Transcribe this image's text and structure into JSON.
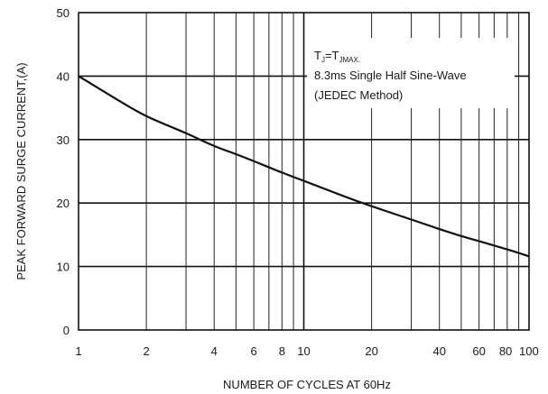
{
  "chart_data": {
    "type": "line",
    "xlabel": "NUMBER OF CYCLES AT 60Hz",
    "ylabel": "PEAK FORWARD SURGE CURRENT,(A)",
    "x_scale": "log",
    "xlim": [
      1,
      100
    ],
    "ylim": [
      0,
      50
    ],
    "grid": true,
    "x_ticks": [
      1,
      2,
      4,
      6,
      8,
      10,
      20,
      40,
      60,
      80,
      100
    ],
    "x_tick_labels": [
      "1",
      "2",
      "4",
      "6",
      "8",
      "10",
      "20",
      "40",
      "60",
      "80",
      "100"
    ],
    "y_ticks": [
      0,
      10,
      20,
      30,
      40,
      50
    ],
    "y_tick_labels": [
      "0",
      "10",
      "20",
      "30",
      "40",
      "50"
    ],
    "series": [
      {
        "x": [
          1,
          1.5,
          2,
          3,
          4,
          5,
          6,
          8,
          10,
          15,
          20,
          30,
          40,
          50,
          60,
          80,
          100
        ],
        "y": [
          40.0,
          36.2,
          33.7,
          31.0,
          29.0,
          27.7,
          26.6,
          24.8,
          23.5,
          21.1,
          19.5,
          17.4,
          15.9,
          14.8,
          14.0,
          12.7,
          11.6
        ]
      }
    ],
    "annotation": {
      "line1_main": "T",
      "line1_sub1": "J",
      "line1_eq": "=T",
      "line1_sub2": "JMAX.",
      "line2": "8.3ms Single Half Sine-Wave",
      "line3": "(JEDEC Method)",
      "position": "top-right"
    }
  }
}
